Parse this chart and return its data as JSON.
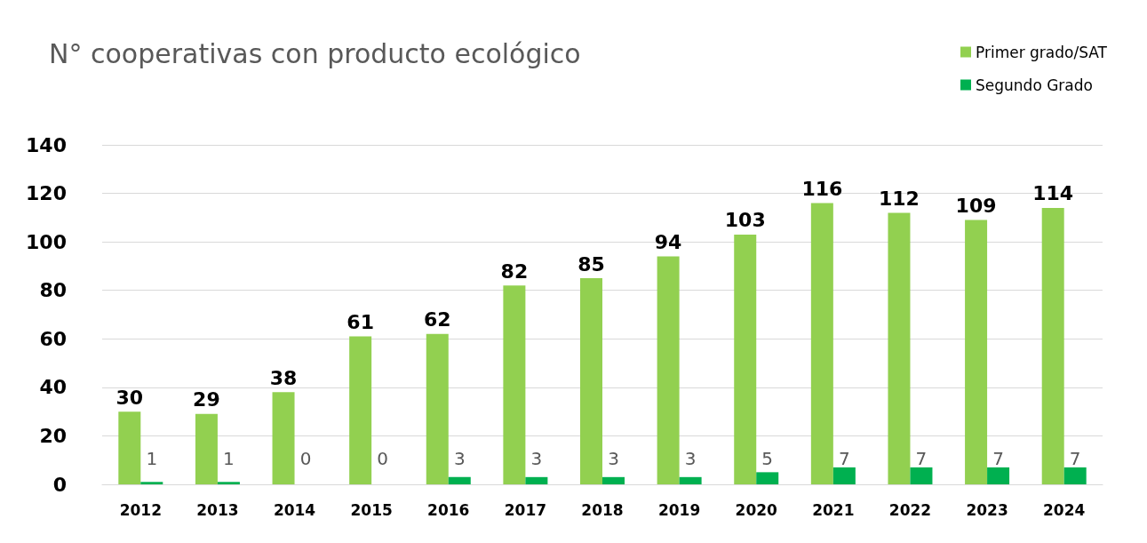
{
  "chart_data": {
    "type": "bar",
    "title": "N° cooperativas con producto ecológico",
    "categories": [
      "2012",
      "2013",
      "2014",
      "2015",
      "2016",
      "2017",
      "2018",
      "2019",
      "2020",
      "2021",
      "2022",
      "2023",
      "2024"
    ],
    "series": [
      {
        "name": "Primer grado/SAT",
        "color": "#92d050",
        "values": [
          30,
          29,
          38,
          61,
          62,
          82,
          85,
          94,
          103,
          116,
          112,
          109,
          114
        ]
      },
      {
        "name": "Segundo Grado",
        "color": "#00b050",
        "values": [
          1,
          1,
          0,
          0,
          3,
          3,
          3,
          3,
          5,
          7,
          7,
          7,
          7
        ]
      }
    ],
    "ylim": [
      0,
      140
    ],
    "yticks": [
      0,
      20,
      40,
      60,
      80,
      100,
      120,
      140
    ],
    "grid": "y",
    "legend": "top right",
    "data_labels": true
  }
}
